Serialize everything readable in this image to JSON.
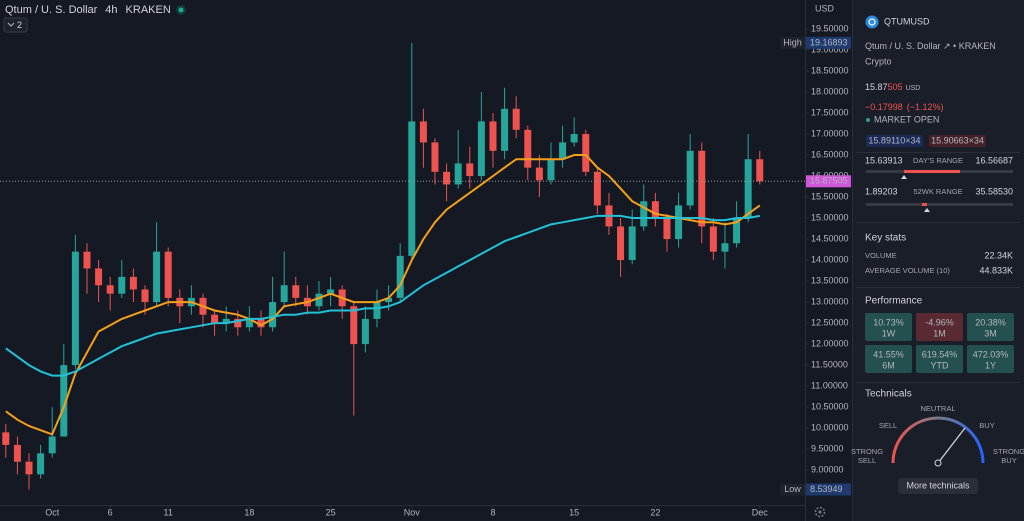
{
  "header": {
    "symbol": "Qtum / U. S. Dollar",
    "interval": "4h",
    "exchange": "KRAKEN",
    "indicator_count": "2"
  },
  "chart_data": {
    "type": "candlestick",
    "currency": "USD",
    "open": [
      9.9,
      9.6,
      9.2,
      8.9,
      9.4,
      9.8,
      11.5,
      14.2,
      13.8,
      13.4,
      13.2,
      13.6,
      13.3,
      13.0,
      14.2,
      13.1,
      12.9,
      13.1,
      12.7,
      12.5,
      12.6,
      12.4,
      12.6,
      12.4,
      13.0,
      13.4,
      13.1,
      12.9,
      13.2,
      13.3,
      12.9,
      12.0,
      12.6,
      13.0,
      13.1,
      14.1,
      17.3,
      16.8,
      16.1,
      15.8,
      16.3,
      16.0,
      17.3,
      16.6,
      17.6,
      17.1,
      16.2,
      15.9,
      16.4,
      16.8,
      17.0,
      16.1,
      15.3,
      14.8,
      14.0,
      14.8,
      15.4,
      15.0,
      14.5,
      15.3,
      16.6,
      14.8,
      14.2,
      14.4,
      15.0,
      16.4
    ],
    "high": [
      10.1,
      9.8,
      9.4,
      9.6,
      10.5,
      12.0,
      14.6,
      14.4,
      14.0,
      13.6,
      14.0,
      13.8,
      13.4,
      14.9,
      14.3,
      13.3,
      13.4,
      13.2,
      12.8,
      12.9,
      12.8,
      12.9,
      12.8,
      13.6,
      14.2,
      13.6,
      13.4,
      13.5,
      13.6,
      13.4,
      13.0,
      12.9,
      13.3,
      13.4,
      14.4,
      19.16893,
      17.6,
      16.9,
      16.3,
      17.1,
      16.7,
      18.0,
      17.5,
      18.1,
      17.9,
      17.2,
      16.5,
      16.8,
      17.2,
      17.4,
      17.1,
      16.2,
      15.6,
      15.0,
      15.2,
      15.8,
      15.6,
      15.1,
      15.6,
      17.0,
      16.8,
      15.0,
      14.9,
      15.4,
      17.0,
      16.6
    ],
    "low": [
      9.3,
      8.9,
      8.53949,
      8.8,
      9.3,
      9.8,
      11.4,
      13.2,
      13.0,
      12.8,
      13.1,
      13.0,
      12.7,
      12.9,
      12.9,
      12.5,
      12.7,
      12.4,
      12.2,
      12.3,
      12.2,
      12.3,
      12.2,
      12.3,
      12.9,
      12.9,
      12.7,
      12.8,
      12.9,
      12.6,
      10.3,
      11.8,
      12.4,
      12.8,
      13.0,
      14.0,
      16.2,
      15.8,
      15.4,
      15.7,
      15.7,
      15.9,
      16.2,
      16.4,
      16.9,
      15.9,
      15.5,
      15.8,
      16.2,
      16.7,
      16.0,
      15.1,
      14.6,
      13.6,
      13.9,
      14.7,
      14.8,
      14.2,
      14.3,
      15.2,
      14.4,
      14.0,
      13.8,
      14.3,
      14.9,
      15.8
    ],
    "close": [
      9.6,
      9.2,
      8.9,
      9.4,
      9.8,
      11.5,
      14.2,
      13.8,
      13.4,
      13.2,
      13.6,
      13.3,
      13.0,
      14.2,
      13.1,
      12.9,
      13.1,
      12.7,
      12.5,
      12.6,
      12.4,
      12.6,
      12.4,
      13.0,
      13.4,
      13.1,
      12.9,
      13.2,
      13.3,
      12.9,
      12.0,
      12.6,
      13.0,
      13.1,
      14.1,
      17.3,
      16.8,
      16.1,
      15.8,
      16.3,
      16.0,
      17.3,
      16.6,
      17.6,
      17.1,
      16.2,
      15.9,
      16.4,
      16.8,
      17.0,
      16.1,
      15.3,
      14.8,
      14.0,
      14.8,
      15.4,
      15.0,
      14.5,
      15.3,
      16.6,
      14.8,
      14.2,
      14.4,
      15.0,
      16.4,
      15.87505
    ],
    "up_color": "#26a69a",
    "down_color": "#ef5350",
    "series": [
      {
        "color": "#f59f1b",
        "values": [
          10.4,
          10.2,
          10.05,
          9.95,
          9.85,
          10.5,
          11.3,
          11.8,
          12.3,
          12.45,
          12.6,
          12.7,
          12.8,
          12.9,
          13.0,
          13.0,
          13.0,
          12.9,
          12.8,
          12.75,
          12.7,
          12.6,
          12.45,
          12.6,
          12.9,
          12.95,
          13.0,
          13.1,
          13.2,
          13.1,
          13.0,
          13.0,
          13.0,
          13.1,
          13.4,
          14.0,
          14.5,
          14.9,
          15.2,
          15.4,
          15.6,
          15.8,
          16.0,
          16.2,
          16.4,
          16.4,
          16.4,
          16.4,
          16.4,
          16.5,
          16.5,
          16.2,
          16.0,
          15.7,
          15.4,
          15.25,
          15.1,
          15.05,
          15.0,
          14.95,
          14.9,
          14.9,
          14.85,
          14.9,
          15.1,
          15.3
        ]
      },
      {
        "color": "#22c1d6",
        "values": [
          11.9,
          11.7,
          11.5,
          11.35,
          11.25,
          11.25,
          11.35,
          11.5,
          11.65,
          11.8,
          11.95,
          12.05,
          12.15,
          12.25,
          12.3,
          12.35,
          12.4,
          12.45,
          12.5,
          12.5,
          12.55,
          12.6,
          12.6,
          12.65,
          12.7,
          12.7,
          12.75,
          12.75,
          12.8,
          12.8,
          12.8,
          12.85,
          12.85,
          12.9,
          13.0,
          13.2,
          13.4,
          13.55,
          13.7,
          13.85,
          14.0,
          14.15,
          14.3,
          14.45,
          14.55,
          14.65,
          14.75,
          14.85,
          14.9,
          14.95,
          15.0,
          15.05,
          15.05,
          15.05,
          15.0,
          15.0,
          15.0,
          15.0,
          15.0,
          15.0,
          15.0,
          14.95,
          14.95,
          15.0,
          15.0,
          15.05
        ]
      }
    ],
    "xlim": [
      -0.5,
      68.9
    ],
    "xticks": [
      {
        "value": 4,
        "label": "Oct"
      },
      {
        "value": 9,
        "label": "6"
      },
      {
        "value": 14,
        "label": "11"
      },
      {
        "value": 21,
        "label": "18"
      },
      {
        "value": 28,
        "label": "25"
      },
      {
        "value": 35,
        "label": "Nov"
      },
      {
        "value": 42,
        "label": "8"
      },
      {
        "value": 49,
        "label": "15"
      },
      {
        "value": 56,
        "label": "22"
      },
      {
        "value": 65,
        "label": "Dec"
      }
    ],
    "ylim": [
      8.17,
      20.19
    ],
    "yticks": [
      {
        "value": 9,
        "label": "9.00000"
      },
      {
        "value": 9.5,
        "label": "9.50000"
      },
      {
        "value": 10,
        "label": "10.00000"
      },
      {
        "value": 10.5,
        "label": "10.50000"
      },
      {
        "value": 11,
        "label": "11.00000"
      },
      {
        "value": 11.5,
        "label": "11.50000"
      },
      {
        "value": 12,
        "label": "12.00000"
      },
      {
        "value": 12.5,
        "label": "12.50000"
      },
      {
        "value": 13,
        "label": "13.00000"
      },
      {
        "value": 13.5,
        "label": "13.50000"
      },
      {
        "value": 14,
        "label": "14.00000"
      },
      {
        "value": 14.5,
        "label": "14.50000"
      },
      {
        "value": 15,
        "label": "15.00000"
      },
      {
        "value": 15.5,
        "label": "15.50000"
      },
      {
        "value": 16,
        "label": "16.00000"
      },
      {
        "value": 16.5,
        "label": "16.50000"
      },
      {
        "value": 17,
        "label": "17.00000"
      },
      {
        "value": 17.5,
        "label": "17.50000"
      },
      {
        "value": 18,
        "label": "18.00000"
      },
      {
        "value": 18.5,
        "label": "18.50000"
      },
      {
        "value": 19,
        "label": "19.00000"
      },
      {
        "value": 19.5,
        "label": "19.50000"
      }
    ],
    "grid": false,
    "high_marker": {
      "label": "High",
      "value": 19.16893
    },
    "low_marker": {
      "label": "Low",
      "value": 8.53949
    },
    "last_price": {
      "value": 15.87505,
      "color": "#cf56d9"
    }
  },
  "sidebar": {
    "ticker": "QTUMUSD",
    "description": "Qtum / U. S. Dollar",
    "exchange": "KRAKEN",
    "type": "Crypto",
    "price_main": "15.87",
    "price_fraction": "505",
    "currency": "USD",
    "change": "−0.17998",
    "change_percent": "(−1.12%)",
    "market_status": "MARKET OPEN",
    "bid": "15.89110×34",
    "ask": "15.90663×34",
    "days_range": {
      "label": "DAY'S RANGE",
      "low": "15.63913",
      "high": "16.56687"
    },
    "week52_range": {
      "label": "52WK RANGE",
      "low": "1.89203",
      "high": "35.58530"
    },
    "key_stats": {
      "title": "Key stats",
      "rows": [
        [
          "VOLUME",
          "22.34K"
        ],
        [
          "AVERAGE VOLUME (10)",
          "44.833K"
        ]
      ]
    },
    "performance": {
      "title": "Performance",
      "items": [
        {
          "value": "10.73%",
          "period": "1W",
          "color": "#24514f"
        },
        {
          "value": "-4.96%",
          "period": "1M",
          "color": "#5a2a32"
        },
        {
          "value": "20.38%",
          "period": "3M",
          "color": "#24514f"
        },
        {
          "value": "41.55%",
          "period": "6M",
          "color": "#24514f"
        },
        {
          "value": "619.54%",
          "period": "YTD",
          "color": "#24514f"
        },
        {
          "value": "472.03%",
          "period": "1Y",
          "color": "#24514f"
        }
      ]
    },
    "technicals": {
      "title": "Technicals",
      "sell": "SELL",
      "neutral": "NEUTRAL",
      "buy": "BUY",
      "strong_sell": [
        "STRONG",
        "SELL"
      ],
      "strong_buy": [
        "STRONG",
        "BUY"
      ],
      "button": "More technicals"
    }
  }
}
